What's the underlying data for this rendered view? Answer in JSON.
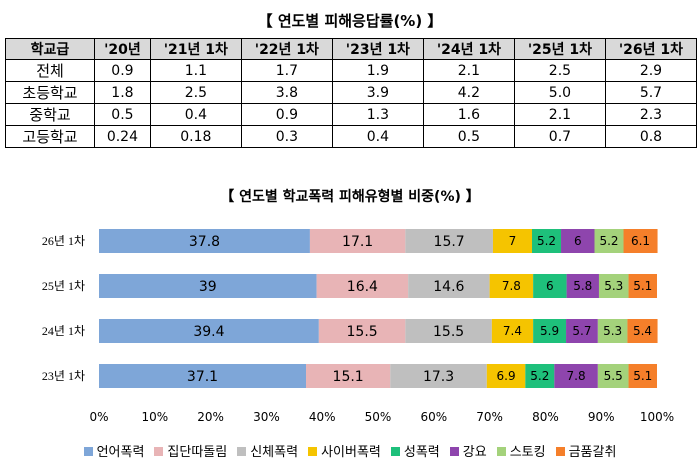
{
  "table": {
    "title": "【 연도별 피해응답률(%) 】",
    "headers": [
      "학교급",
      "'20년",
      "'21년 1차",
      "'22년 1차",
      "'23년 1차",
      "'24년 1차",
      "'25년 1차",
      "'26년 1차"
    ],
    "rows": [
      {
        "label": "전체",
        "values": [
          "0.9",
          "1.1",
          "1.7",
          "1.9",
          "2.1",
          "2.5",
          "2.9"
        ]
      },
      {
        "label": "초등학교",
        "values": [
          "1.8",
          "2.5",
          "3.8",
          "3.9",
          "4.2",
          "5.0",
          "5.7"
        ]
      },
      {
        "label": "중학교",
        "values": [
          "0.5",
          "0.4",
          "0.9",
          "1.3",
          "1.6",
          "2.1",
          "2.3"
        ]
      },
      {
        "label": "고등학교",
        "values": [
          "0.24",
          "0.18",
          "0.3",
          "0.4",
          "0.5",
          "0.7",
          "0.8"
        ]
      }
    ]
  },
  "chart_data": {
    "type": "bar",
    "orientation": "horizontal",
    "stacked": true,
    "title": "【 연도별 학교폭력 피해유형별 비중(%) 】",
    "categories": [
      "26년 1차",
      "25년 1차",
      "24년 1차",
      "23년 1차"
    ],
    "xlim": [
      0,
      100
    ],
    "x_ticks": [
      "0%",
      "10%",
      "20%",
      "30%",
      "40%",
      "50%",
      "60%",
      "70%",
      "80%",
      "90%",
      "100%"
    ],
    "legend_position": "bottom",
    "grid": false,
    "series": [
      {
        "name": "언어폭력",
        "color": "#7ea6d8",
        "values": [
          37.8,
          39,
          39.4,
          37.1
        ]
      },
      {
        "name": "집단따돌림",
        "color": "#e8b4b6",
        "values": [
          17.1,
          16.4,
          15.5,
          15.1
        ]
      },
      {
        "name": "신체폭력",
        "color": "#bfbfbf",
        "values": [
          15.7,
          14.6,
          15.5,
          17.3
        ]
      },
      {
        "name": "사이버폭력",
        "color": "#f5c400",
        "values": [
          7,
          7.8,
          7.4,
          6.9
        ]
      },
      {
        "name": "성폭력",
        "color": "#1ec07b",
        "values": [
          5.2,
          6,
          5.9,
          5.2
        ]
      },
      {
        "name": "강요",
        "color": "#8e45ad",
        "values": [
          6,
          5.8,
          5.7,
          7.8
        ]
      },
      {
        "name": "스토킹",
        "color": "#a4d27b",
        "values": [
          5.2,
          5.3,
          5.3,
          5.5
        ]
      },
      {
        "name": "금품갈취",
        "color": "#f57f2a",
        "values": [
          6.1,
          5.1,
          5.4,
          5.1
        ]
      }
    ]
  }
}
